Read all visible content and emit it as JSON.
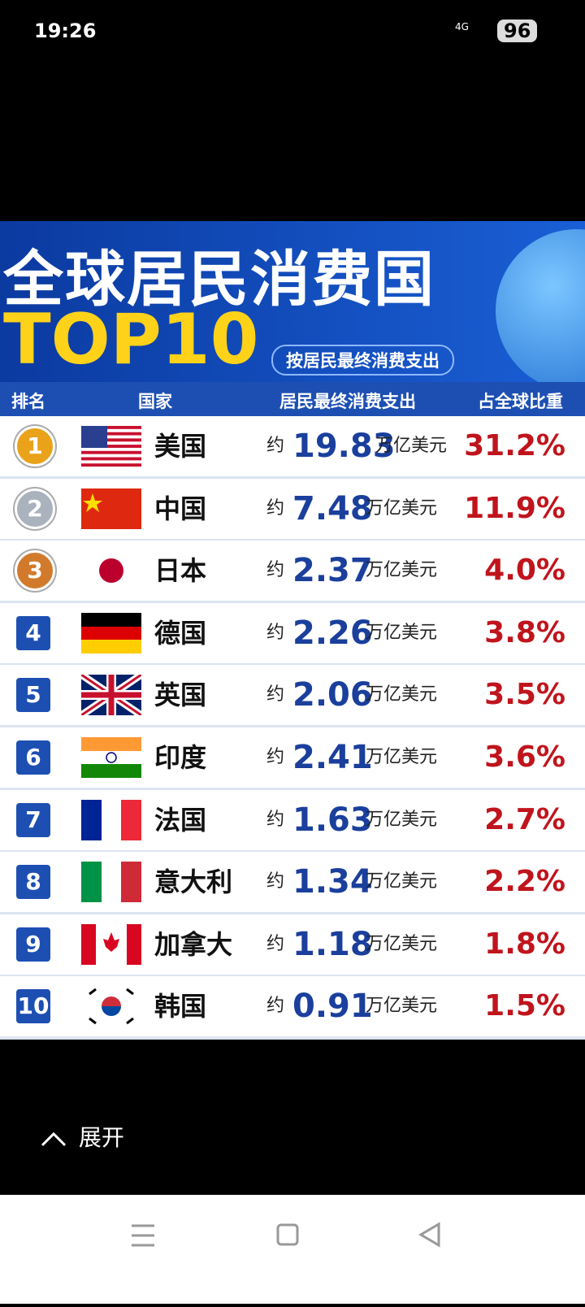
{
  "status_bar": {
    "time": "19:26",
    "network": "4G",
    "battery": "96"
  },
  "banner": {
    "title": "全球居民消费国",
    "top": "TOP10",
    "subtitle": "按居民最终消费支出"
  },
  "table": {
    "headers": [
      "排名",
      "国家",
      "居民最终消费支出",
      "占全球比重"
    ],
    "rows": [
      [
        "1",
        "美国",
        "约",
        "19.83",
        "万亿美元",
        "31.2%"
      ],
      [
        "2",
        "中国",
        "约",
        "7.48",
        "万亿美元",
        "11.9%"
      ],
      [
        "3",
        "日本",
        "约",
        "2.37",
        "万亿美元",
        "4.0%"
      ],
      [
        "4",
        "德国",
        "约",
        "2.26",
        "万亿美元",
        "3.8%"
      ],
      [
        "5",
        "英国",
        "约",
        "2.06",
        "万亿美元",
        "3.5%"
      ],
      [
        "6",
        "印度",
        "约",
        "2.41",
        "万亿美元",
        "3.6%"
      ],
      [
        "7",
        "法国",
        "约",
        "1.63",
        "万亿美元",
        "2.7%"
      ],
      [
        "8",
        "意大利",
        "约",
        "1.34",
        "万亿美元",
        "2.2%"
      ],
      [
        "9",
        "加拿大",
        "约",
        "1.18",
        "万亿美元",
        "1.8%"
      ],
      [
        "10",
        "韩国",
        "约",
        "0.91",
        "万亿美元",
        "1.5%"
      ]
    ]
  },
  "footer": {
    "expand": "展开"
  }
}
